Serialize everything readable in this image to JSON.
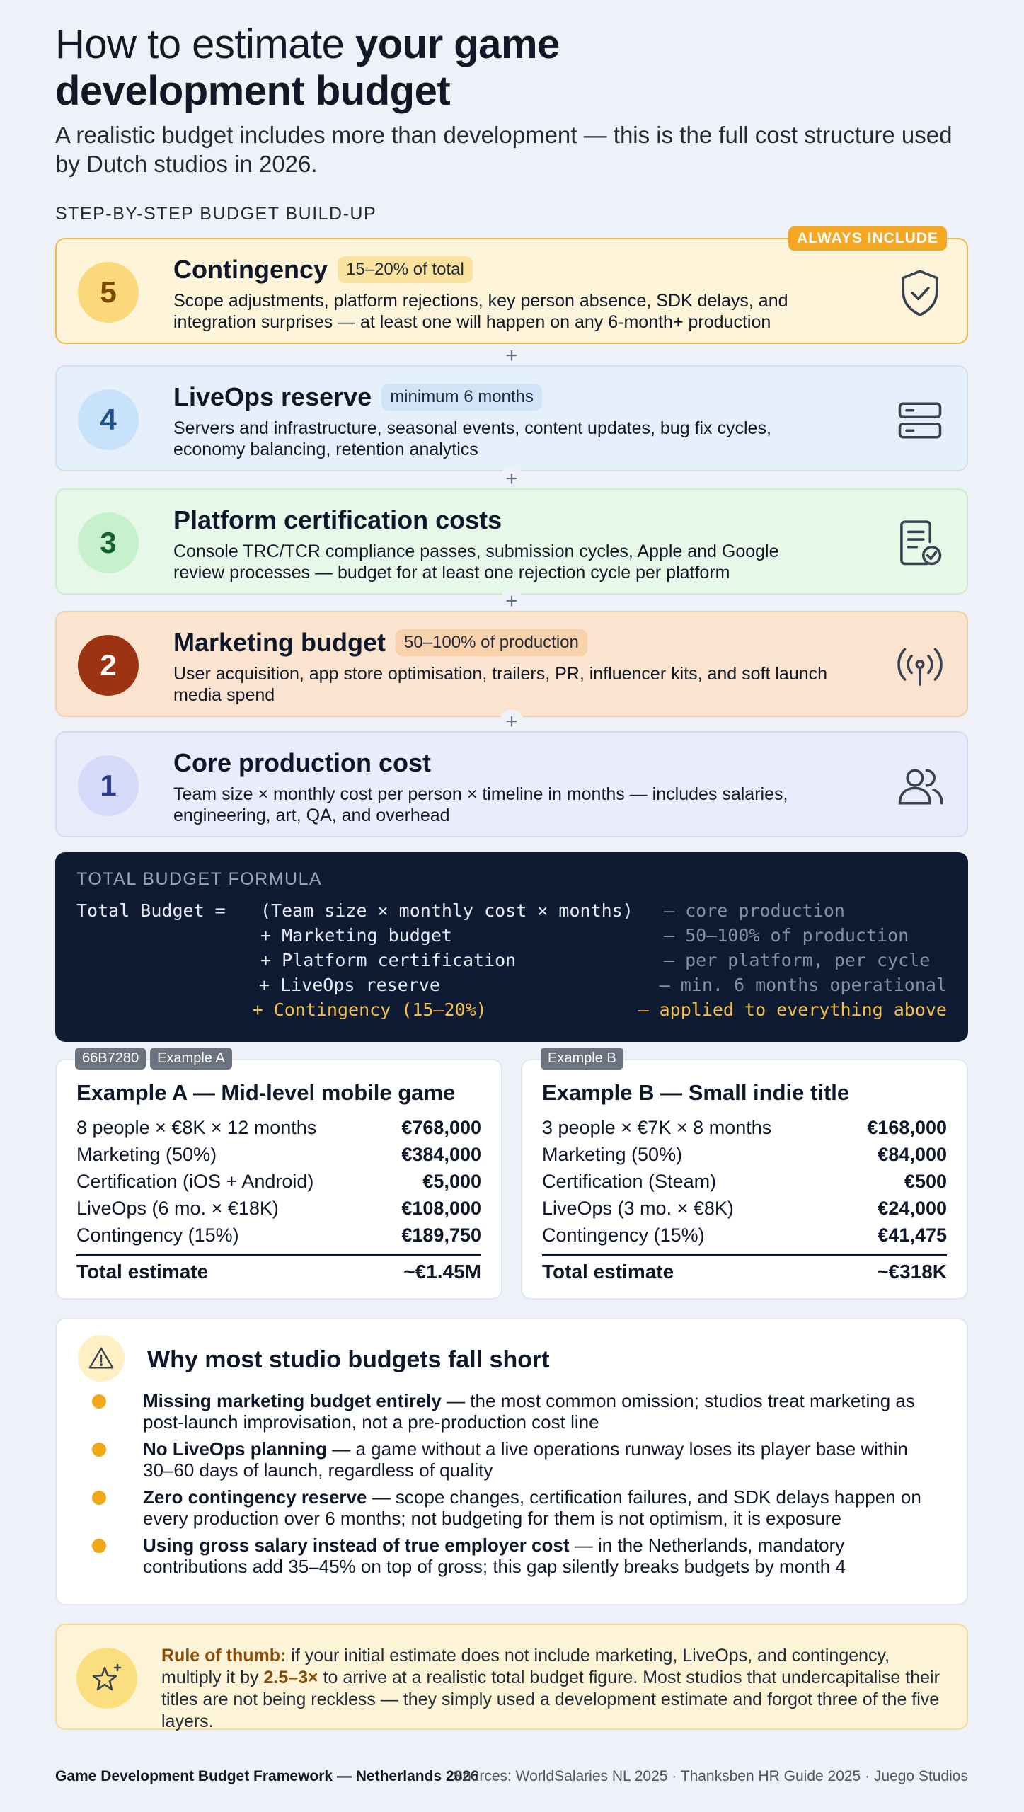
{
  "header": {
    "title_part1": "How to estimate ",
    "title_part2": "your game",
    "title_part3": "development budget",
    "subtitle": "A realistic budget includes more than development — this is the full cost structure used by Dutch studios in 2026.",
    "section_label": "STEP-BY-STEP BUDGET BUILD-UP"
  },
  "steps": [
    {
      "number": "5",
      "name": "Contingency",
      "pill": "15–20% of total",
      "badge": "ALWAYS INCLUDE",
      "desc": "Scope adjustments, platform rejections, key person absence, SDK delays, and integration surprises — at least one will happen on any 6-month+ production",
      "icon": "shield-check-icon"
    },
    {
      "number": "4",
      "name": "LiveOps reserve",
      "pill": "minimum 6 months",
      "desc": "Servers and infrastructure, seasonal events, content updates, bug fix cycles, economy balancing, retention analytics",
      "icon": "server-icon"
    },
    {
      "number": "3",
      "name": "Platform certification costs",
      "desc": "Console TRC/TCR compliance passes, submission cycles, Apple and Google review processes — budget for at least one rejection cycle per platform",
      "icon": "certificate-icon"
    },
    {
      "number": "2",
      "name": "Marketing budget",
      "pill": "50–100% of production",
      "desc": "User acquisition, app store optimisation, trailers, PR, influencer kits, and soft launch media spend",
      "icon": "broadcast-icon"
    },
    {
      "number": "1",
      "name": "Core production cost",
      "desc": "Team size × monthly cost per person × timeline in months — includes salaries, engineering, art, QA, and overhead",
      "icon": "users-icon"
    }
  ],
  "plus_symbol": "+",
  "formula": {
    "label": "TOTAL BUDGET FORMULA",
    "rows": [
      {
        "lead": "Total Budget =",
        "term": "(Team size × monthly cost × months)",
        "note": "– core production"
      },
      {
        "lead": "",
        "term": "+ Marketing budget",
        "note": "– 50–100% of production"
      },
      {
        "lead": "",
        "term": "+ Platform certification",
        "note": "– per platform, per cycle"
      },
      {
        "lead": "",
        "term": "+ LiveOps reserve",
        "note": "– min. 6 months operational"
      },
      {
        "lead": "",
        "term": "+ Contingency (15–20%)",
        "note": "– applied to everything above"
      }
    ]
  },
  "examples": [
    {
      "tags": [
        "66B7280",
        "Example A"
      ],
      "title": "Example A — Mid-level mobile game",
      "rows": [
        {
          "label": "8 people × €8K × 12 months",
          "value": "€768,000"
        },
        {
          "label": "Marketing (50%)",
          "value": "€384,000"
        },
        {
          "label": "Certification (iOS + Android)",
          "value": "€5,000"
        },
        {
          "label": "LiveOps (6 mo. × €18K)",
          "value": "€108,000"
        },
        {
          "label": "Contingency (15%)",
          "value": "€189,750"
        }
      ],
      "total_label": "Total estimate",
      "total_value": "~€1.45M"
    },
    {
      "tags": [
        "Example B"
      ],
      "title": "Example B — Small indie title",
      "rows": [
        {
          "label": "3 people × €7K × 8 months",
          "value": "€168,000"
        },
        {
          "label": "Marketing (50%)",
          "value": "€84,000"
        },
        {
          "label": "Certification (Steam)",
          "value": "€500"
        },
        {
          "label": "LiveOps (3 mo. × €8K)",
          "value": "€24,000"
        },
        {
          "label": "Contingency (15%)",
          "value": "€41,475"
        }
      ],
      "total_label": "Total estimate",
      "total_value": "~€318K"
    }
  ],
  "why": {
    "title": "Why most studio budgets fall short",
    "items": [
      {
        "bold": "Missing marketing budget entirely",
        "rest": " — the most common omission; studios treat marketing as post-launch improvisation, not a pre-production cost line"
      },
      {
        "bold": "No LiveOps planning",
        "rest": " — a game without a live operations runway loses its player base within 30–60 days of launch, regardless of quality"
      },
      {
        "bold": "Zero contingency reserve",
        "rest": " — scope changes, certification failures, and SDK delays happen on every production over 6 months; not budgeting for them is not optimism, it is exposure"
      },
      {
        "bold": "Using gross salary instead of true employer cost",
        "rest": " — in the Netherlands, mandatory contributions add 35–45% on top of gross; this gap silently breaks budgets by month 4"
      }
    ]
  },
  "rule": {
    "lead": "Rule of thumb:",
    "part1": " if your initial estimate does not include marketing, LiveOps, and contingency, multiply it by ",
    "multiplier": "2.5–3×",
    "part2": " to arrive at a realistic total budget figure. Most studios that undercapitalise their titles are not being reckless — they simply used a development estimate and forgot three of the five layers."
  },
  "footer": {
    "left": "Game Development Budget Framework — Netherlands 2026",
    "right": "Sources: WorldSalaries NL 2025 · Thanksben HR Guide 2025 · Juego Studios"
  },
  "colors": {
    "accent_amber": "#f5a623",
    "formula_bg": "#0f1b33",
    "marketing_circle": "#9c3412"
  }
}
